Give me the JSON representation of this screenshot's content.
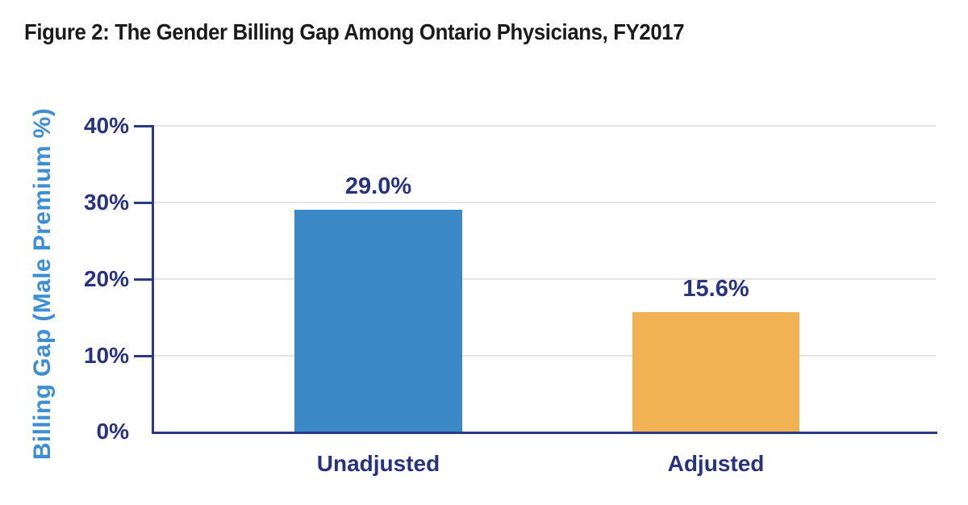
{
  "figure": {
    "title": "Figure 2: The Gender Billing Gap Among Ontario Physicians, FY2017"
  },
  "chart_data": {
    "type": "bar",
    "title": "Figure 2: The Gender Billing Gap Among Ontario Physicians, FY2017",
    "categories": [
      "Unadjusted",
      "Adjusted"
    ],
    "values": [
      29.0,
      15.6
    ],
    "value_labels": [
      "29.0%",
      "15.6%"
    ],
    "xlabel": "",
    "ylabel": "Billing Gap (Male Premium %)",
    "ylim": [
      0,
      40
    ],
    "ytick_labels_top_down": [
      "40%",
      "30%",
      "20%",
      "10%",
      "0%"
    ],
    "grid": true,
    "legend_position": "none",
    "bar_colors": [
      "#3A88C6",
      "#F0B253"
    ],
    "colors": {
      "title_text": "#1A1A1A",
      "axis_line": "#2B3A85",
      "tick_label_text": "#283380",
      "y_axis_title_text": "#3E8ED3",
      "gridline": "#E4E4E6",
      "background": "#FFFFFF"
    }
  }
}
